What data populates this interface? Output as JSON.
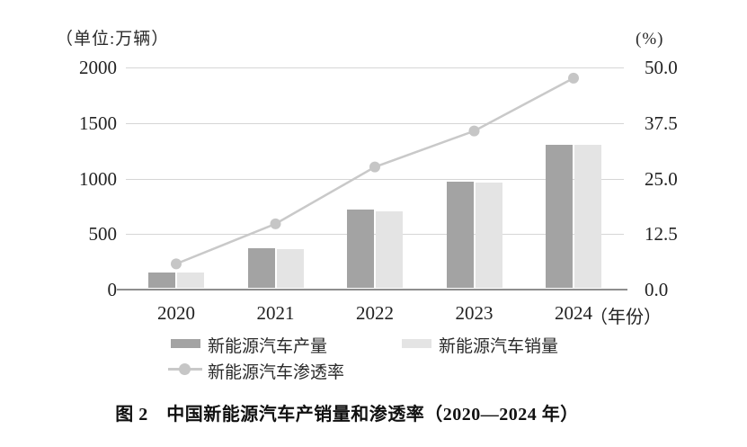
{
  "axes": {
    "left_unit": "（单位:万辆）",
    "right_unit": "(%)",
    "left_ticks": [
      "2000",
      "1500",
      "1000",
      "500",
      "0"
    ],
    "right_ticks": [
      "50.0",
      "37.5",
      "25.0",
      "12.5",
      "0.0"
    ],
    "x_unit": "（年份）"
  },
  "chart_data": {
    "type": "bar",
    "subtype": "grouped-bars-with-line",
    "categories": [
      "2020",
      "2021",
      "2022",
      "2023",
      "2024"
    ],
    "series": [
      {
        "name": "新能源汽车产量",
        "type": "bar",
        "axis": "left",
        "values": [
          136.6,
          354.5,
          705.8,
          958.7,
          1288.8
        ],
        "color": "#a3a3a3"
      },
      {
        "name": "新能源汽车销量",
        "type": "bar",
        "axis": "left",
        "values": [
          136.7,
          352.1,
          688.7,
          949.5,
          1286.6
        ],
        "color": "#e4e4e4"
      },
      {
        "name": "新能源汽车渗透率",
        "type": "line",
        "axis": "right",
        "values": [
          5.8,
          14.8,
          27.6,
          35.7,
          47.6
        ],
        "color": "#c8c8c8"
      }
    ],
    "left_axis": {
      "label": "（单位:万辆）",
      "min": 0,
      "max": 2000,
      "ticks": [
        0,
        500,
        1000,
        1500,
        2000
      ]
    },
    "right_axis": {
      "label": "(%)",
      "min": 0,
      "max": 50,
      "ticks": [
        0,
        12.5,
        25,
        37.5,
        50
      ]
    },
    "x_label": "（年份）",
    "grid": true,
    "legend_position": "bottom",
    "title": "图 2　中国新能源汽车产销量和渗透率（2020—2024 年）"
  },
  "legend": {
    "production": "新能源汽车产量",
    "sales": "新能源汽车销量",
    "penetration": "新能源汽车渗透率"
  },
  "colors": {
    "production_bar": "#a3a3a3",
    "sales_bar": "#e4e4e4",
    "penetration_line": "#c9c9c9",
    "penetration_marker": "#c6c6c6",
    "gridline": "#d6d6d6",
    "axis_line": "#8e8e8e"
  },
  "caption": "图 2　中国新能源汽车产销量和渗透率（2020—2024 年）"
}
